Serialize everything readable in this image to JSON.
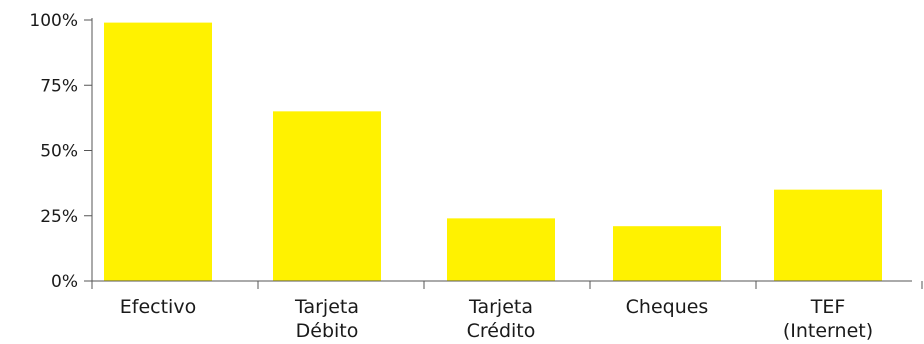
{
  "chart_data": {
    "type": "bar",
    "categories": [
      [
        "Efectivo"
      ],
      [
        "Tarjeta",
        "Débito"
      ],
      [
        "Tarjeta",
        "Crédito"
      ],
      [
        "Cheques"
      ],
      [
        "TEF",
        "(Internet)"
      ]
    ],
    "values": [
      99,
      65,
      24,
      21,
      35
    ],
    "ylim": [
      0,
      100
    ],
    "yticks": [
      "0%",
      "25%",
      "50%",
      "75%",
      "100%"
    ],
    "ytick_values": [
      0,
      25,
      50,
      75,
      100
    ],
    "grid": false,
    "legend": "none",
    "colors": {
      "bar": "#fff200",
      "axis": "#555555",
      "text": "#1a1a1a"
    }
  }
}
